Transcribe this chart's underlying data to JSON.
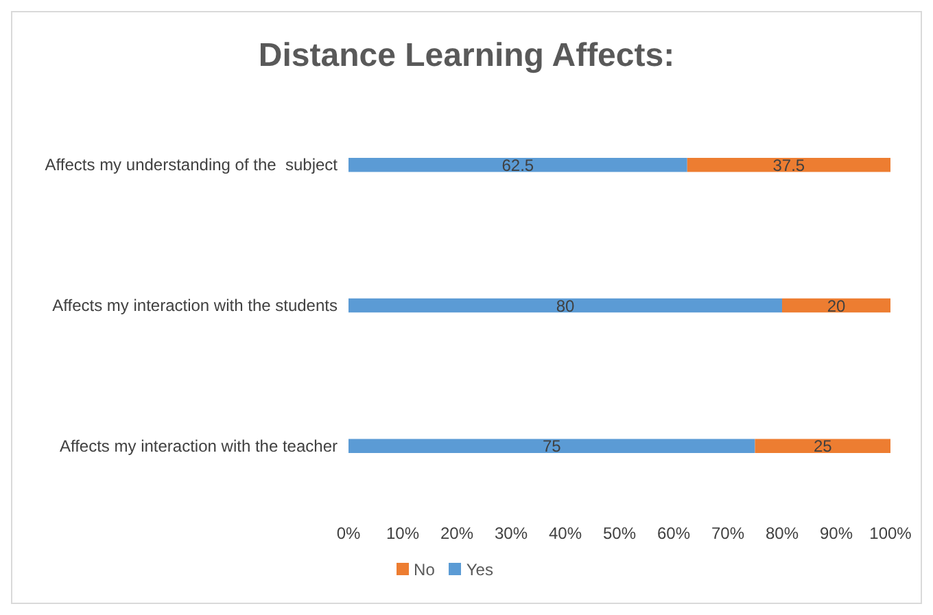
{
  "chart_data": {
    "type": "bar",
    "orientation": "horizontal",
    "stacked": true,
    "title": "Distance Learning Affects:",
    "categories": [
      "Affects my understanding of the  subject",
      "Affects my interaction with the students",
      "Affects my interaction with the teacher"
    ],
    "series": [
      {
        "name": "Yes",
        "color": "#5b9bd5",
        "values": [
          62.5,
          80,
          75
        ]
      },
      {
        "name": "No",
        "color": "#ed7d31",
        "values": [
          37.5,
          20,
          25
        ]
      }
    ],
    "xlim": [
      0,
      100
    ],
    "xticks": [
      {
        "value": 0,
        "label": "0%"
      },
      {
        "value": 10,
        "label": "10%"
      },
      {
        "value": 20,
        "label": "20%"
      },
      {
        "value": 30,
        "label": "30%"
      },
      {
        "value": 40,
        "label": "40%"
      },
      {
        "value": 50,
        "label": "50%"
      },
      {
        "value": 60,
        "label": "60%"
      },
      {
        "value": 70,
        "label": "70%"
      },
      {
        "value": 80,
        "label": "80%"
      },
      {
        "value": 90,
        "label": "90%"
      },
      {
        "value": 100,
        "label": "100%"
      }
    ],
    "data_labels": true,
    "legend": "bottom",
    "grid": false
  }
}
